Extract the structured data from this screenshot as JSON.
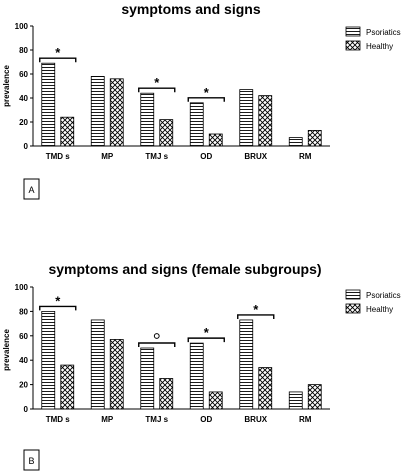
{
  "chart_data": [
    {
      "type": "bar",
      "title": "symptoms and signs",
      "ylabel": "prevalence",
      "xlabel": "",
      "ylim": [
        0,
        100
      ],
      "yticks": [
        "0",
        "20",
        "40",
        "60",
        "80",
        "100"
      ],
      "categories": [
        "TMD s",
        "MP",
        "TMJ s",
        "OD",
        "BRUX",
        "RM"
      ],
      "series": [
        {
          "name": "Psoriatics",
          "pattern": "horizontal-stripes",
          "values": [
            69,
            58,
            44,
            36,
            47,
            7
          ]
        },
        {
          "name": "Healthy",
          "pattern": "crosshatch",
          "values": [
            24,
            56,
            22,
            10,
            42,
            13
          ]
        }
      ],
      "legend_position": "top-right",
      "grid": false,
      "significance": [
        {
          "category": "TMD s",
          "marker": "*"
        },
        {
          "category": "TMJ s",
          "marker": "*"
        },
        {
          "category": "OD",
          "marker": "*"
        }
      ],
      "panel_label": "A"
    },
    {
      "type": "bar",
      "title": "symptoms and signs (female subgroups)",
      "ylabel": "prevalence",
      "xlabel": "",
      "ylim": [
        0,
        100
      ],
      "yticks": [
        "0",
        "20",
        "40",
        "60",
        "80",
        "100"
      ],
      "categories": [
        "TMD s",
        "MP",
        "TMJ s",
        "OD",
        "BRUX",
        "RM"
      ],
      "series": [
        {
          "name": "Psoriatics",
          "pattern": "horizontal-stripes",
          "values": [
            80,
            73,
            50,
            54,
            73,
            14
          ]
        },
        {
          "name": "Healthy",
          "pattern": "crosshatch",
          "values": [
            36,
            57,
            25,
            14,
            34,
            20
          ]
        }
      ],
      "legend_position": "top-right",
      "grid": false,
      "significance": [
        {
          "category": "TMD s",
          "marker": "*"
        },
        {
          "category": "TMJ s",
          "marker": "o"
        },
        {
          "category": "OD",
          "marker": "*"
        },
        {
          "category": "BRUX",
          "marker": "*"
        }
      ],
      "panel_label": "B"
    }
  ]
}
